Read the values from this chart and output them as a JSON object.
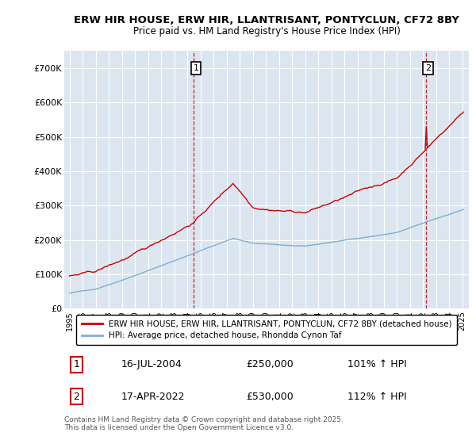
{
  "title": "ERW HIR HOUSE, ERW HIR, LLANTRISANT, PONTYCLUN, CF72 8BY",
  "subtitle": "Price paid vs. HM Land Registry's House Price Index (HPI)",
  "ylim": [
    0,
    750000
  ],
  "yticks": [
    0,
    100000,
    200000,
    300000,
    400000,
    500000,
    600000,
    700000
  ],
  "ytick_labels": [
    "£0",
    "£100K",
    "£200K",
    "£300K",
    "£400K",
    "£500K",
    "£600K",
    "£700K"
  ],
  "background_color": "#ffffff",
  "plot_bg_color": "#dce6f1",
  "grid_color": "#ffffff",
  "hpi_line_color": "#7bafd4",
  "price_line_color": "#cc0000",
  "marker1_date_idx": 114,
  "marker1_price": 250000,
  "marker2_date_idx": 327,
  "marker2_price": 530000,
  "annotation1_label": "1",
  "annotation1_text": "16-JUL-2004",
  "annotation1_price_text": "£250,000",
  "annotation1_hpi_text": "101% ↑ HPI",
  "annotation2_label": "2",
  "annotation2_text": "17-APR-2022",
  "annotation2_price_text": "£530,000",
  "annotation2_hpi_text": "112% ↑ HPI",
  "legend_line1": "ERW HIR HOUSE, ERW HIR, LLANTRISANT, PONTYCLUN, CF72 8BY (detached house)",
  "legend_line2": "HPI: Average price, detached house, Rhondda Cynon Taf",
  "footer": "Contains HM Land Registry data © Crown copyright and database right 2025.\nThis data is licensed under the Open Government Licence v3.0.",
  "title_fontsize": 9.5,
  "subtitle_fontsize": 8.5
}
